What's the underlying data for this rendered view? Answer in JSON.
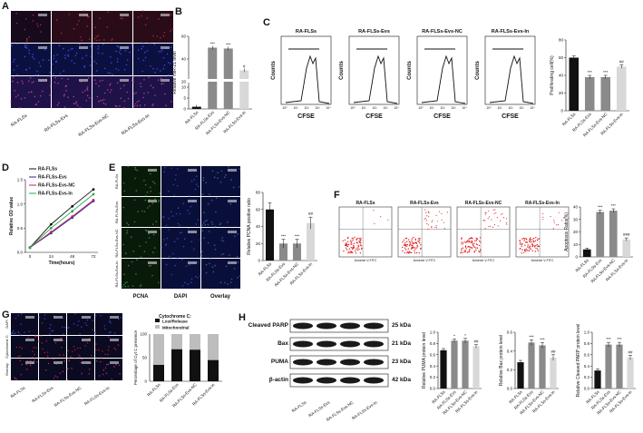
{
  "panels": {
    "A": {
      "label": "A",
      "groups": [
        "RA-FLSs",
        "RA-FLSs-Evs",
        "RA-FLSs-Evs-NC",
        "RA-FLSs-Evs-In"
      ],
      "micro_colors": [
        "#0b1030",
        "#1a1c6e",
        "#6a1a5a"
      ]
    },
    "B": {
      "label": "B"
    },
    "C": {
      "label": "C",
      "histograms": [
        "RA-FLSs",
        "RA-FLSs-Evs",
        "RA-FLSs-Evs-NC",
        "RA-FLSs-Evs-In"
      ],
      "ylabel": "Counts",
      "xlabel": "CFSE",
      "ticks": [
        "10⁰",
        "10¹",
        "10²",
        "10³",
        "10⁴"
      ]
    },
    "D": {
      "label": "D"
    },
    "E": {
      "label": "E",
      "channels": [
        "PCNA",
        "DAPI",
        "Overlay"
      ],
      "rows": [
        "RA-FLSs",
        "RA-FLSs-Evs",
        "RA-FLSs-Evs-NC",
        "RA-FLSs-Evs-In"
      ]
    },
    "F": {
      "label": "F",
      "plots": [
        "RA-FLSs",
        "RA-FLSs-Evs",
        "RA-FLSs-Evs-NC",
        "RA-FLSs-Evs-In"
      ],
      "xaxis": "Annexin V-FITC"
    },
    "G": {
      "label": "G",
      "rows": [
        "DAPI",
        "Cytochrome C",
        "Overlay"
      ]
    },
    "H": {
      "label": "H",
      "bands": [
        {
          "name": "Cleaved PARP",
          "kda": "25 kDa"
        },
        {
          "name": "Bax",
          "kda": "21 kDa"
        },
        {
          "name": "PUMA",
          "kda": "23 kDa"
        },
        {
          "name": "β-actin",
          "kda": "42 kDa"
        }
      ]
    }
  },
  "chart_data": [
    {
      "id": "B",
      "type": "bar",
      "categories": [
        "RA-FLSs",
        "RA-FLSs-Evs",
        "RA-FLSs-Evs-NC",
        "RA-FLSs-Evs-In"
      ],
      "values": [
        1,
        47,
        46,
        21
      ],
      "errors": [
        0.3,
        2,
        2,
        1.5
      ],
      "colors": [
        "#111111",
        "#8a8a8a",
        "#8a8a8a",
        "#d8d8d8"
      ],
      "ylabel": "Relative miR-21 level",
      "yticks": [
        "0",
        "5",
        "10",
        "20",
        "40",
        "60"
      ],
      "sig": [
        "",
        "***",
        "***",
        "#"
      ]
    },
    {
      "id": "C",
      "type": "bar",
      "categories": [
        "RA-FLSs",
        "RA-FLSs-Evs",
        "RA-FLSs-Evs-NC",
        "RA-FLSs-Evs-In"
      ],
      "values": [
        60,
        38,
        38,
        50
      ],
      "errors": [
        2,
        2,
        2,
        2
      ],
      "colors": [
        "#111111",
        "#8a8a8a",
        "#8a8a8a",
        "#d8d8d8"
      ],
      "ylabel": "Proliferating cell(%)",
      "ylim": [
        0,
        80
      ],
      "yticks": [
        "0",
        "20",
        "40",
        "60",
        "80"
      ],
      "sig": [
        "",
        "***",
        "***",
        "##"
      ]
    },
    {
      "id": "D",
      "type": "line",
      "x": [
        0,
        24,
        48,
        72
      ],
      "xlabel": "Time(hours)",
      "ylabel": "Relative OD value",
      "ylim": [
        0,
        1.5
      ],
      "yticks": [
        "0.0",
        "0.5",
        "1.0",
        "1.5"
      ],
      "legend": "top-left",
      "series": [
        {
          "name": "RA-FLSs",
          "values": [
            0.1,
            0.58,
            0.95,
            1.3
          ],
          "color": "#111111"
        },
        {
          "name": "RA-FLSs-Evs",
          "values": [
            0.1,
            0.4,
            0.72,
            1.06
          ],
          "color": "#2d2d8c"
        },
        {
          "name": "RA-FLSs-Evs-NC",
          "values": [
            0.1,
            0.42,
            0.74,
            1.08
          ],
          "color": "#b8246b"
        },
        {
          "name": "RA-FLSs-Evs-In",
          "values": [
            0.1,
            0.5,
            0.85,
            1.2
          ],
          "color": "#2aa84a"
        }
      ]
    },
    {
      "id": "E",
      "type": "bar",
      "categories": [
        "RA-FLSs",
        "RA-FLSs-Evs",
        "RA-FLSs-Evs-NC",
        "RA-FLSs-Evs-In"
      ],
      "values": [
        60,
        20,
        20,
        44
      ],
      "errors": [
        8,
        5,
        5,
        7
      ],
      "colors": [
        "#111111",
        "#8a8a8a",
        "#8a8a8a",
        "#d8d8d8"
      ],
      "ylabel": "Relative PCNA positive ratio",
      "ylim": [
        0,
        80
      ],
      "yticks": [
        "0",
        "20",
        "40",
        "60",
        "80"
      ],
      "sig": [
        "",
        "***",
        "***",
        "##"
      ]
    },
    {
      "id": "F",
      "type": "bar",
      "categories": [
        "RA-FLSs",
        "RA-FLSs-Evs",
        "RA-FLSs-Evs-NC",
        "RA-FLSs-Evs-In"
      ],
      "values": [
        6,
        36,
        37,
        14
      ],
      "errors": [
        1,
        1.5,
        1.5,
        1.2
      ],
      "colors": [
        "#111111",
        "#8a8a8a",
        "#8a8a8a",
        "#d8d8d8"
      ],
      "ylabel": "Apoptosis Ratio(%)",
      "ylim": [
        0,
        40
      ],
      "yticks": [
        "0",
        "10",
        "20",
        "30",
        "40"
      ],
      "sig": [
        "",
        "***",
        "***",
        "###"
      ]
    },
    {
      "id": "G",
      "type": "bar",
      "stacked": true,
      "title": "Cytochrome C:",
      "categories": [
        "RA-FLSs",
        "RA-FLSs-Evs",
        "RA-FLSs-Evs-NC",
        "RA-FLSs-Evs-In"
      ],
      "ylabel": "Percentage of Cyt C presence",
      "ylim": [
        0,
        100
      ],
      "yticks": [
        "0",
        "50",
        "100"
      ],
      "legend": "top",
      "series": [
        {
          "name": "Lost/Release",
          "values": [
            35,
            68,
            67,
            45
          ],
          "color": "#111111"
        },
        {
          "name": "Mitochondrial",
          "values": [
            65,
            32,
            33,
            55
          ],
          "color": "#bdbdbd"
        }
      ]
    },
    {
      "id": "H1",
      "type": "bar",
      "categories": [
        "RA-FLSs",
        "RA-FLSs-Evs",
        "RA-FLSs-Evs-NC",
        "RA-FLSs-Evs-In"
      ],
      "values": [
        0.68,
        0.85,
        0.85,
        0.75
      ],
      "errors": [
        0.03,
        0.03,
        0.04,
        0.03
      ],
      "colors": [
        "#111111",
        "#8a8a8a",
        "#8a8a8a",
        "#d8d8d8"
      ],
      "ylabel": "Relative PUMA protein level",
      "ylim": [
        0,
        1.0
      ],
      "yticks": [
        "0.0",
        "0.2",
        "0.4",
        "0.6",
        "0.8",
        "1.0"
      ],
      "sig": [
        "",
        "*",
        "*",
        "##"
      ]
    },
    {
      "id": "H2",
      "type": "bar",
      "categories": [
        "RA-FLSs",
        "RA-FLSs-Evs",
        "RA-FLSs-Evs-NC",
        "RA-FLSs-Evs-In"
      ],
      "values": [
        0.28,
        0.49,
        0.46,
        0.33
      ],
      "errors": [
        0.02,
        0.03,
        0.03,
        0.03
      ],
      "colors": [
        "#111111",
        "#8a8a8a",
        "#8a8a8a",
        "#d8d8d8"
      ],
      "ylabel": "Relative Bax protein level",
      "ylim": [
        0,
        0.6
      ],
      "yticks": [
        "0.0",
        "0.2",
        "0.4",
        "0.6"
      ],
      "sig": [
        "",
        "***",
        "***",
        "##"
      ]
    },
    {
      "id": "H3",
      "type": "bar",
      "categories": [
        "RA-FLSs",
        "RA-FLSs-Evs",
        "RA-FLSs-Evs-NC",
        "RA-FLSs-Evs-In"
      ],
      "values": [
        0.32,
        0.78,
        0.78,
        0.55
      ],
      "errors": [
        0.03,
        0.04,
        0.04,
        0.04
      ],
      "colors": [
        "#111111",
        "#8a8a8a",
        "#8a8a8a",
        "#d8d8d8"
      ],
      "ylabel": "Relative Cleaved PARP protein level",
      "ylim": [
        0,
        1.0
      ],
      "yticks": [
        "0.0",
        "0.2",
        "0.4",
        "0.6",
        "0.8",
        "1.0"
      ],
      "sig": [
        "",
        "***",
        "***",
        "##"
      ]
    }
  ]
}
